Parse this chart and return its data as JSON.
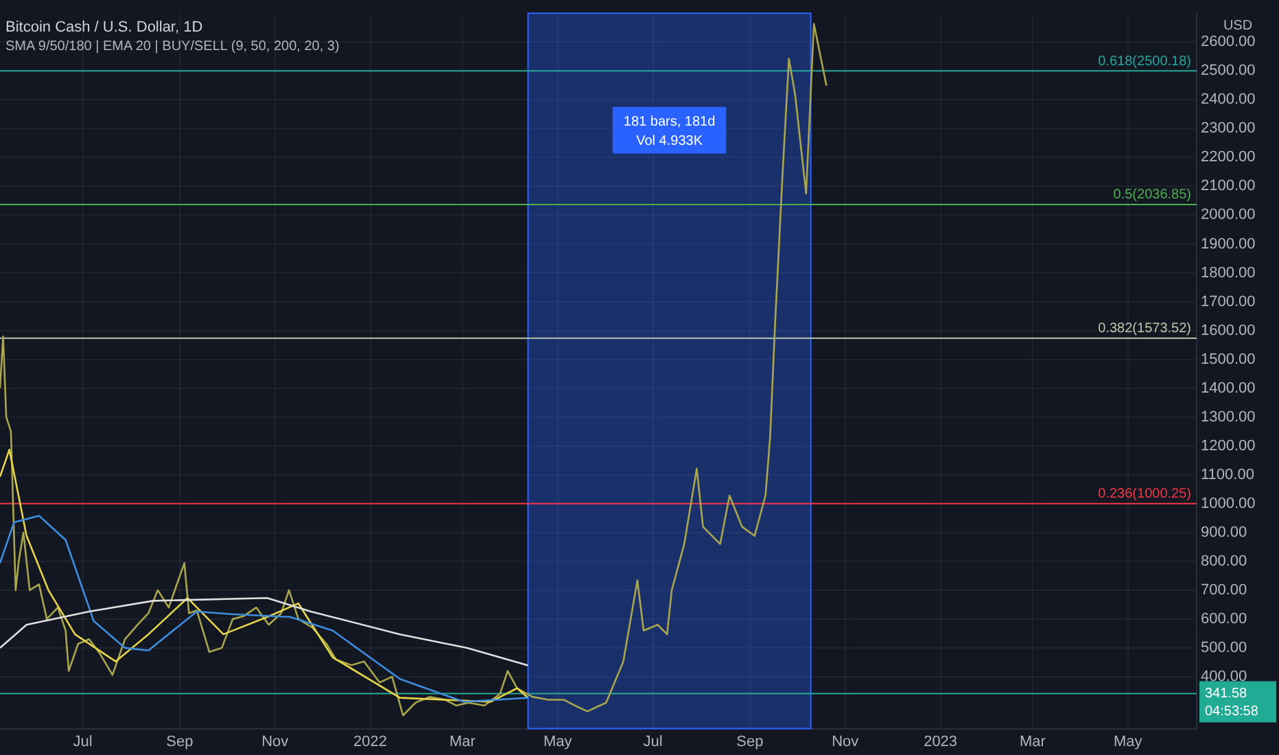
{
  "chart_data": {
    "type": "line",
    "title": "Bitcoin Cash / U.S. Dollar, 1D",
    "subtitle": "SMA 9/50/180 | EMA 20 | BUY/SELL (9, 50, 200, 20, 3)",
    "ylabel": "USD",
    "xlim": [
      "2021-05-09",
      "2023-06-14"
    ],
    "xticks": [
      {
        "value": "2021-07-01",
        "label": "Jul"
      },
      {
        "value": "2021-09-01",
        "label": "Sep"
      },
      {
        "value": "2021-11-01",
        "label": "Nov"
      },
      {
        "value": "2022-01-01",
        "label": "2022"
      },
      {
        "value": "2022-03-01",
        "label": "Mar"
      },
      {
        "value": "2022-05-01",
        "label": "May"
      },
      {
        "value": "2022-07-01",
        "label": "Jul"
      },
      {
        "value": "2022-09-01",
        "label": "Sep"
      },
      {
        "value": "2022-11-01",
        "label": "Nov"
      },
      {
        "value": "2023-01-01",
        "label": "2023"
      },
      {
        "value": "2023-03-01",
        "label": "Mar"
      },
      {
        "value": "2023-05-01",
        "label": "May"
      }
    ],
    "ylim": [
      220,
      2700
    ],
    "yticks": [
      {
        "value": 400,
        "label": "400.00"
      },
      {
        "value": 500,
        "label": "500.00"
      },
      {
        "value": 600,
        "label": "600.00"
      },
      {
        "value": 700,
        "label": "700.00"
      },
      {
        "value": 800,
        "label": "800.00"
      },
      {
        "value": 900,
        "label": "900.00"
      },
      {
        "value": 1000,
        "label": "1000.00"
      },
      {
        "value": 1100,
        "label": "1100.00"
      },
      {
        "value": 1200,
        "label": "1200.00"
      },
      {
        "value": 1300,
        "label": "1300.00"
      },
      {
        "value": 1400,
        "label": "1400.00"
      },
      {
        "value": 1500,
        "label": "1500.00"
      },
      {
        "value": 1600,
        "label": "1600.00"
      },
      {
        "value": 1700,
        "label": "1700.00"
      },
      {
        "value": 1800,
        "label": "1800.00"
      },
      {
        "value": 1900,
        "label": "1900.00"
      },
      {
        "value": 2000,
        "label": "2000.00"
      },
      {
        "value": 2100,
        "label": "2100.00"
      },
      {
        "value": 2200,
        "label": "2200.00"
      },
      {
        "value": 2300,
        "label": "2300.00"
      },
      {
        "value": 2400,
        "label": "2400.00"
      },
      {
        "value": 2500,
        "label": "2500.00"
      },
      {
        "value": 2600,
        "label": "2600.00"
      }
    ],
    "grid": true,
    "legend": false,
    "marker": "none",
    "line_style": "solid",
    "series": [
      {
        "color": "#e0e0e0",
        "x": [
          "2021-05-09",
          "2021-05-26",
          "2021-07-05",
          "2021-08-15",
          "2021-10-27",
          "2021-11-24",
          "2022-01-20",
          "2022-03-04",
          "2022-04-12"
        ],
        "values": [
          500,
          580,
          626,
          663,
          673,
          626,
          547,
          500,
          439
        ]
      },
      {
        "color": "#3d8ee0",
        "x": [
          "2021-05-09",
          "2021-05-18",
          "2021-06-03",
          "2021-06-20",
          "2021-07-08",
          "2021-07-28",
          "2021-08-12",
          "2021-09-12",
          "2021-10-04",
          "2021-11-11",
          "2021-12-08",
          "2022-01-20",
          "2022-03-02",
          "2022-04-12"
        ],
        "values": [
          794,
          935,
          958,
          874,
          593,
          500,
          491,
          626,
          617,
          607,
          560,
          392,
          313,
          327
        ]
      },
      {
        "color": "#e6d44a",
        "x": [
          "2021-05-09",
          "2021-05-15",
          "2021-05-26",
          "2021-06-09",
          "2021-06-26",
          "2021-07-22",
          "2021-08-12",
          "2021-09-06",
          "2021-09-29",
          "2021-10-27",
          "2021-11-16",
          "2021-12-08",
          "2022-01-20",
          "2022-03-19",
          "2022-04-05",
          "2022-04-12"
        ],
        "values": [
          1093,
          1187,
          888,
          700,
          547,
          453,
          547,
          673,
          547,
          607,
          654,
          467,
          327,
          313,
          360,
          327
        ]
      },
      {
        "color": "#a9a64e",
        "x": [
          "2021-05-09",
          "2021-05-11",
          "2021-05-13",
          "2021-05-16",
          "2021-05-19",
          "2021-05-21",
          "2021-05-24",
          "2021-05-28",
          "2021-06-03",
          "2021-06-08",
          "2021-06-15",
          "2021-06-20",
          "2021-06-22",
          "2021-06-28",
          "2021-07-05",
          "2021-07-12",
          "2021-07-20",
          "2021-07-28",
          "2021-08-05",
          "2021-08-12",
          "2021-08-18",
          "2021-08-25",
          "2021-09-04",
          "2021-09-07",
          "2021-09-12",
          "2021-09-20",
          "2021-09-28",
          "2021-10-05",
          "2021-10-12",
          "2021-10-20",
          "2021-10-28",
          "2021-11-05",
          "2021-11-10",
          "2021-11-16",
          "2021-11-25",
          "2021-12-04",
          "2021-12-10",
          "2021-12-20",
          "2021-12-28",
          "2022-01-07",
          "2022-01-15",
          "2022-01-22",
          "2022-01-30",
          "2022-02-08",
          "2022-02-18",
          "2022-02-25",
          "2022-03-05",
          "2022-03-15",
          "2022-03-25",
          "2022-03-30",
          "2022-04-05",
          "2022-04-15",
          "2022-04-25",
          "2022-05-05",
          "2022-05-12",
          "2022-05-20",
          "2022-06-01",
          "2022-06-12",
          "2022-06-21",
          "2022-06-25",
          "2022-07-04",
          "2022-07-10",
          "2022-07-13",
          "2022-07-21",
          "2022-07-29",
          "2022-08-02",
          "2022-08-13",
          "2022-08-19",
          "2022-08-27",
          "2022-09-04",
          "2022-09-11",
          "2022-09-14",
          "2022-09-17",
          "2022-09-22",
          "2022-09-26",
          "2022-09-30",
          "2022-10-07",
          "2022-10-12",
          "2022-10-20"
        ],
        "values": [
          1400,
          1580,
          1300,
          1250,
          700,
          800,
          900,
          700,
          720,
          600,
          640,
          560,
          420,
          514,
          530,
          480,
          406,
          530,
          580,
          620,
          700,
          640,
          794,
          620,
          630,
          486,
          500,
          600,
          610,
          640,
          580,
          620,
          700,
          600,
          570,
          514,
          460,
          440,
          453,
          380,
          400,
          266,
          310,
          330,
          320,
          300,
          310,
          300,
          340,
          420,
          360,
          330,
          320,
          320,
          300,
          280,
          310,
          453,
          734,
          560,
          580,
          547,
          700,
          860,
          1121,
          920,
          860,
          1028,
          920,
          888,
          1028,
          1234,
          1607,
          2150,
          2542,
          2416,
          2075,
          2663,
          2449
        ]
      }
    ],
    "ref_lines": [
      {
        "axis": "y",
        "value": 2500.18,
        "label": "0.618(2500.18)",
        "color": "#26a69a"
      },
      {
        "axis": "y",
        "value": 2036.85,
        "label": "0.5(2036.85)",
        "color": "#4caf50"
      },
      {
        "axis": "y",
        "value": 1573.52,
        "label": "0.382(1573.52)",
        "color": "#b7c9a8"
      },
      {
        "axis": "y",
        "value": 1000.25,
        "label": "0.236(1000.25)",
        "color": "#f23645"
      },
      {
        "axis": "y",
        "value": 341.58,
        "label": "341.58",
        "color": "#22ab94"
      }
    ],
    "bands": [
      {
        "axis": "x",
        "from": "2022-04-12",
        "to": "2022-10-10",
        "label": "181 bars, 181d",
        "color": "#2962ff"
      }
    ],
    "annotations": [
      "Vol 4.933K",
      "04:53:58"
    ]
  }
}
